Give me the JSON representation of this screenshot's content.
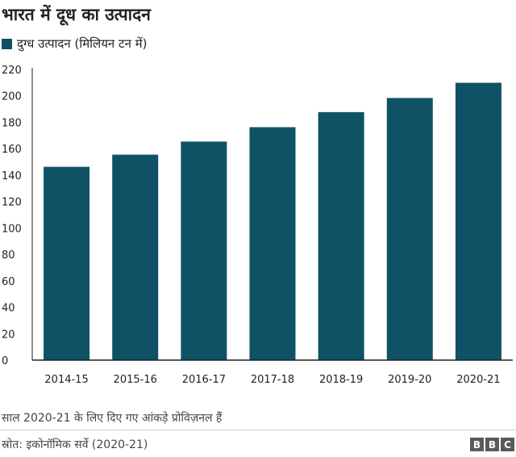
{
  "chart_data": {
    "type": "bar",
    "title": "भारत में दूध का उत्पादन",
    "categories": [
      "2014-15",
      "2015-16",
      "2016-17",
      "2017-18",
      "2018-19",
      "2019-20",
      "2020-21"
    ],
    "series": [
      {
        "name": "दुग्ध उत्पादन (मिलियन टन में)",
        "values": [
          146.3,
          155.5,
          165.4,
          176.3,
          187.7,
          198.4,
          209.9
        ]
      }
    ],
    "ylim": [
      0,
      220
    ],
    "yticks": [
      0,
      20,
      40,
      60,
      80,
      100,
      120,
      140,
      160,
      180,
      200,
      220
    ],
    "xlabel": "",
    "ylabel": "",
    "grid": false,
    "legend_position": "top-left",
    "bar_color": "#0f5265"
  },
  "footer": {
    "note": "साल 2020-21 के लिए दिए गए आंकड़े प्रोविज़नल हैं",
    "source": "स्रोत: इकोनॉमिक सर्वे (2020-21)",
    "logo_letters": [
      "B",
      "B",
      "C"
    ]
  }
}
